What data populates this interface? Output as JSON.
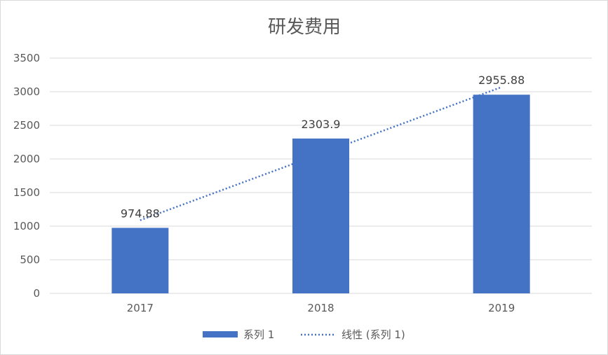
{
  "chart_data": {
    "type": "bar",
    "title": "研发费用",
    "categories": [
      "2017",
      "2018",
      "2019"
    ],
    "series": [
      {
        "name": "系列 1",
        "values": [
          974.88,
          2303.9,
          2955.88
        ],
        "data_labels": [
          "974.88",
          "2303.9",
          "2955.88"
        ],
        "color": "#4472C4"
      }
    ],
    "trendline": {
      "name": "线性 (系列 1)",
      "type": "linear",
      "style": "dotted",
      "color": "#4472C4"
    },
    "y_ticks": [
      "0",
      "500",
      "1000",
      "1500",
      "2000",
      "2500",
      "3000",
      "3500"
    ],
    "ylim": [
      0,
      3500
    ],
    "grid": true,
    "legend_position": "bottom"
  }
}
